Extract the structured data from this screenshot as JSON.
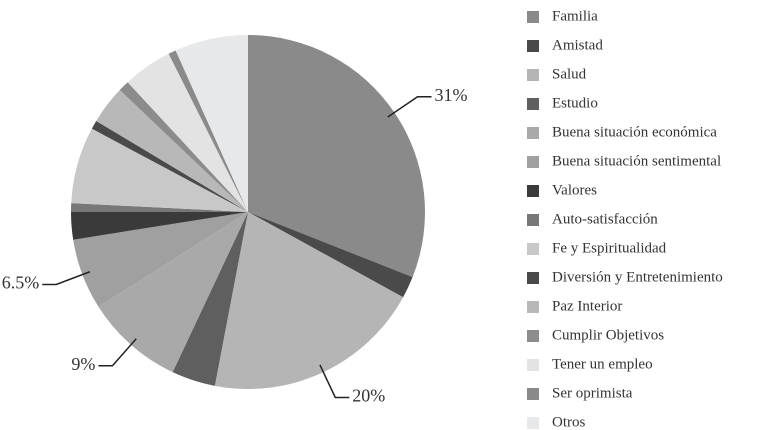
{
  "chart_data": {
    "type": "pie",
    "categories": [
      "Familia",
      "Amistad",
      "Salud",
      "Estudio",
      "Buena situación económica",
      "Buena situación sentimental",
      "Valores",
      "Auto-satisfacción",
      "Fe y Espiritualidad",
      "Diversión y Entretenimiento",
      "Paz Interior",
      "Cumplir Objetivos",
      "Tener un empleo",
      "Ser oprimista",
      "Otros"
    ],
    "values": [
      31,
      2,
      20,
      4,
      9,
      6.5,
      2.5,
      0.8,
      7,
      0.8,
      3.5,
      1,
      4.5,
      0.7,
      6.7
    ],
    "value_labels": [
      "31%",
      null,
      "20%",
      null,
      "9%",
      "6.5%",
      null,
      null,
      null,
      null,
      null,
      null,
      null,
      null,
      null
    ],
    "colors": [
      "#8a8a8a",
      "#4a4a4a",
      "#b5b5b5",
      "#5f5f5f",
      "#a9a9a9",
      "#a0a0a0",
      "#3a3a3a",
      "#777777",
      "#c8c8c8",
      "#4a4a4a",
      "#b8b8b8",
      "#8c8c8c",
      "#e3e3e3",
      "#8a8a8a",
      "#e6e8ea"
    ],
    "legend": "right"
  }
}
